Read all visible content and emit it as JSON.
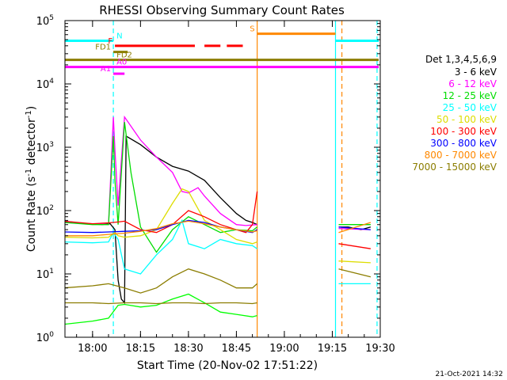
{
  "chart_data": {
    "type": "line",
    "title": "RHESSI Observing Summary Count Rates",
    "xlabel": "Start Time (20-Nov-02 17:51:22)",
    "ylabel": "Count Rate (s",
    "ylabel_sup": "-1",
    "ylabel_tail": " detector",
    "ylabel_sup2": "-1",
    "ylabel_close": ")",
    "footer": "21-Oct-2021 14:32",
    "y_scale": "log",
    "ylim": [
      1,
      100000
    ],
    "xlim": [
      "17:51:22",
      "19:30:00"
    ],
    "x_ticks": [
      "18:00",
      "18:15",
      "18:30",
      "18:45",
      "19:00",
      "19:15",
      "19:30"
    ],
    "y_tick_labels": [
      {
        "base": "10",
        "exp": "0",
        "value": 1
      },
      {
        "base": "10",
        "exp": "1",
        "value": 10
      },
      {
        "base": "10",
        "exp": "2",
        "value": 100
      },
      {
        "base": "10",
        "exp": "3",
        "value": 1000
      },
      {
        "base": "10",
        "exp": "4",
        "value": 10000
      },
      {
        "base": "10",
        "exp": "5",
        "value": 100000
      }
    ],
    "legend_title": "Det 1,3,4,5,6,9",
    "legend_position": "right",
    "series": [
      {
        "name": "3 - 6 keV",
        "color": "#000000",
        "x": [
          "17:51",
          "17:58",
          "18:03",
          "18:05:30",
          "18:07",
          "18:08",
          "18:09",
          "18:10",
          "18:10:30",
          "18:15",
          "18:20",
          "18:25",
          "18:30",
          "18:35",
          "18:40",
          "18:45",
          "18:48",
          "18:50",
          "18:51:30",
          "19:17",
          "19:20",
          "19:24",
          "19:27"
        ],
        "y": [
          68,
          62,
          60,
          62,
          50,
          8,
          4,
          3.5,
          1500,
          1100,
          700,
          500,
          420,
          300,
          160,
          90,
          70,
          65,
          60,
          55,
          55,
          50,
          55
        ]
      },
      {
        "name": "6 - 12 keV",
        "color": "#ff00ff",
        "x": [
          "17:51",
          "18:00",
          "18:05",
          "18:06:30",
          "18:07",
          "18:08",
          "18:10",
          "18:15",
          "18:20",
          "18:25",
          "18:28",
          "18:30",
          "18:33",
          "18:35",
          "18:40",
          "18:45",
          "18:48",
          "18:51:30",
          "19:17",
          "19:27"
        ],
        "y": [
          65,
          62,
          60,
          3000,
          900,
          120,
          3000,
          1300,
          700,
          400,
          200,
          190,
          230,
          170,
          90,
          60,
          58,
          60,
          52,
          50
        ]
      },
      {
        "name": "12 - 25 keV",
        "color": "#00dd00",
        "x": [
          "17:51",
          "18:00",
          "18:05",
          "18:06:30",
          "18:07",
          "18:08",
          "18:10",
          "18:12",
          "18:15",
          "18:20",
          "18:25",
          "18:30",
          "18:35",
          "18:40",
          "18:45",
          "18:50",
          "18:51:30",
          "19:17",
          "19:27"
        ],
        "y": [
          65,
          60,
          60,
          1500,
          300,
          60,
          2500,
          400,
          55,
          22,
          50,
          80,
          60,
          45,
          50,
          48,
          55,
          60,
          60
        ]
      },
      {
        "name": "25 - 50 keV",
        "color": "#00ffff",
        "x": [
          "17:51",
          "18:00",
          "18:05",
          "18:06:30",
          "18:08",
          "18:10",
          "18:15",
          "18:20",
          "18:25",
          "18:28",
          "18:30",
          "18:35",
          "18:40",
          "18:45",
          "18:50",
          "18:51:30",
          "19:17",
          "19:27"
        ],
        "y": [
          32,
          31,
          32,
          45,
          35,
          12,
          10,
          20,
          35,
          70,
          30,
          25,
          35,
          30,
          28,
          25,
          7,
          7
        ]
      },
      {
        "name": "50 - 100 keV",
        "color": "#dddd00",
        "x": [
          "17:51",
          "18:00",
          "18:05",
          "18:07",
          "18:08",
          "18:10",
          "18:15",
          "18:20",
          "18:25",
          "18:28",
          "18:30",
          "18:35",
          "18:40",
          "18:45",
          "18:50",
          "18:51:30",
          "19:17",
          "19:27"
        ],
        "y": [
          38,
          37,
          38,
          45,
          40,
          38,
          40,
          50,
          130,
          220,
          200,
          70,
          50,
          35,
          30,
          32,
          16,
          15
        ]
      },
      {
        "name": "100 - 300 keV",
        "color": "#ff0000",
        "x": [
          "17:51",
          "18:00",
          "18:05",
          "18:08",
          "18:10",
          "18:15",
          "18:20",
          "18:25",
          "18:30",
          "18:35",
          "18:40",
          "18:45",
          "18:48",
          "18:50",
          "18:51:30",
          "19:17",
          "19:27"
        ],
        "y": [
          68,
          62,
          64,
          66,
          68,
          50,
          45,
          60,
          100,
          80,
          60,
          50,
          45,
          60,
          200,
          30,
          25
        ]
      },
      {
        "name": "300 - 800 keV",
        "color": "#0000ff",
        "x": [
          "17:51",
          "18:00",
          "18:05",
          "18:10",
          "18:15",
          "18:20",
          "18:25",
          "18:30",
          "18:35",
          "18:40",
          "18:45",
          "18:50",
          "18:51:30",
          "19:17",
          "19:27"
        ],
        "y": [
          46,
          45,
          46,
          47,
          48,
          50,
          60,
          70,
          65,
          55,
          50,
          45,
          50,
          55,
          50
        ]
      },
      {
        "name": "800 - 7000 keV",
        "color": "#ff8800",
        "x": [
          "17:51",
          "18:00",
          "18:05",
          "18:10",
          "18:15",
          "18:20",
          "18:25",
          "18:30",
          "18:35",
          "18:40",
          "18:45",
          "18:50",
          "18:51:30",
          "19:17",
          "19:27"
        ],
        "y": [
          40,
          40,
          42,
          44,
          47,
          52,
          62,
          68,
          62,
          55,
          50,
          46,
          48,
          45,
          65
        ]
      },
      {
        "name": "7000 - 15000 keV",
        "color": "#8b7d00",
        "x": [
          "17:51",
          "18:00",
          "18:05",
          "18:10",
          "18:15",
          "18:20",
          "18:25",
          "18:30",
          "18:35",
          "18:40",
          "18:45",
          "18:50",
          "18:51:30",
          "19:17",
          "19:27"
        ],
        "y": [
          6,
          6.5,
          7,
          6,
          5,
          6,
          9,
          12,
          10,
          8,
          6,
          6,
          7,
          12,
          9
        ]
      },
      {
        "name": "",
        "color": "#00ff00",
        "x": [
          "17:51",
          "18:00",
          "18:05",
          "18:08",
          "18:10",
          "18:15",
          "18:20",
          "18:25",
          "18:30",
          "18:35",
          "18:40",
          "18:45",
          "18:50",
          "18:51:30"
        ],
        "y": [
          1.6,
          1.8,
          2,
          3.2,
          3.3,
          3,
          3.2,
          4,
          4.8,
          3.5,
          2.5,
          2.3,
          2.1,
          2.2
        ]
      },
      {
        "name": "",
        "color": "#8b7d00",
        "x": [
          "17:51",
          "18:00",
          "18:05",
          "18:10",
          "18:15",
          "18:20",
          "18:25",
          "18:30",
          "18:35",
          "18:40",
          "18:45",
          "18:50",
          "18:51:30"
        ],
        "y": [
          3.5,
          3.5,
          3.4,
          3.5,
          3.5,
          3.4,
          3.5,
          3.5,
          3.4,
          3.5,
          3.5,
          3.4,
          3.5
        ]
      }
    ],
    "flags": [
      {
        "label": "N",
        "color": "#00ffff",
        "y": 48000,
        "segments": [
          [
            "17:51:22",
            "18:06:30"
          ],
          [
            "19:16",
            "19:29:30"
          ]
        ]
      },
      {
        "label": "S",
        "color": "#ff8800",
        "y": 62000,
        "segments": [
          [
            "18:51:30",
            "19:16"
          ]
        ]
      },
      {
        "label": "F",
        "color": "#ff0000",
        "y": 40000,
        "segments": [
          [
            "18:07",
            "18:32"
          ],
          [
            "18:35",
            "18:40"
          ],
          [
            "18:42",
            "18:47"
          ]
        ]
      },
      {
        "label": "FD1",
        "color": "#8b7d00",
        "y": 32000,
        "segments": [
          [
            "18:06:30",
            "18:11"
          ]
        ]
      },
      {
        "label": "FD2",
        "color": "#8b7d00",
        "y": 24000,
        "segments": [
          [
            "17:51:22",
            "19:29:30"
          ]
        ]
      },
      {
        "label": "A0",
        "color": "#ff00ff",
        "y": 18500,
        "segments": [
          [
            "17:51:22",
            "19:29:30"
          ]
        ]
      },
      {
        "label": "A1",
        "color": "#ff00ff",
        "y": 14500,
        "segments": [
          [
            "18:06:30",
            "18:10"
          ]
        ]
      }
    ],
    "vlines": [
      {
        "x": "18:06:30",
        "color": "#00ffff",
        "style": "dashed"
      },
      {
        "x": "18:51:30",
        "color": "#ff8800",
        "style": "solid"
      },
      {
        "x": "19:16",
        "color": "#00ffff",
        "style": "solid"
      },
      {
        "x": "19:18",
        "color": "#ff8800",
        "style": "dashed"
      },
      {
        "x": "19:29",
        "color": "#00ffff",
        "style": "dashed"
      }
    ]
  }
}
